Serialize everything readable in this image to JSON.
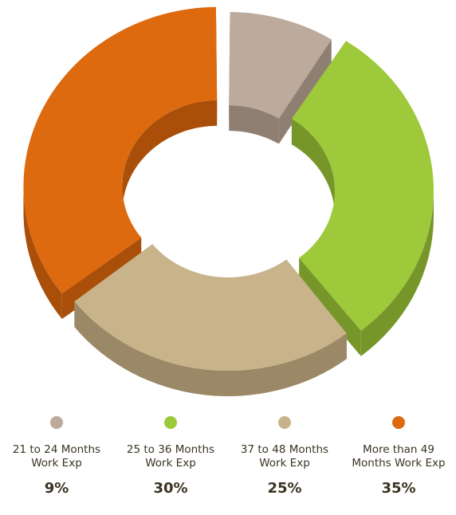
{
  "chart_data": {
    "type": "pie",
    "style": "3d-donut",
    "categories": [
      "21 to 24  Months\nWork Exp",
      "25 to 36 Months\nWork Exp",
      "37 to 48 Months\nWork Exp",
      "More than 49\nMonths Work Exp"
    ],
    "values": [
      "9%",
      "30%",
      "25%",
      "35%"
    ],
    "slice_sizes": [
      9,
      30,
      25,
      35
    ],
    "colors": [
      "#bcaa9c",
      "#9dc93a",
      "#c9b38a",
      "#de6a10"
    ],
    "side_colors": [
      "#8f7f72",
      "#76962a",
      "#9a8866",
      "#a94f09"
    ],
    "exploded": [
      false,
      true,
      false,
      true
    ],
    "legend_position": "bottom"
  }
}
